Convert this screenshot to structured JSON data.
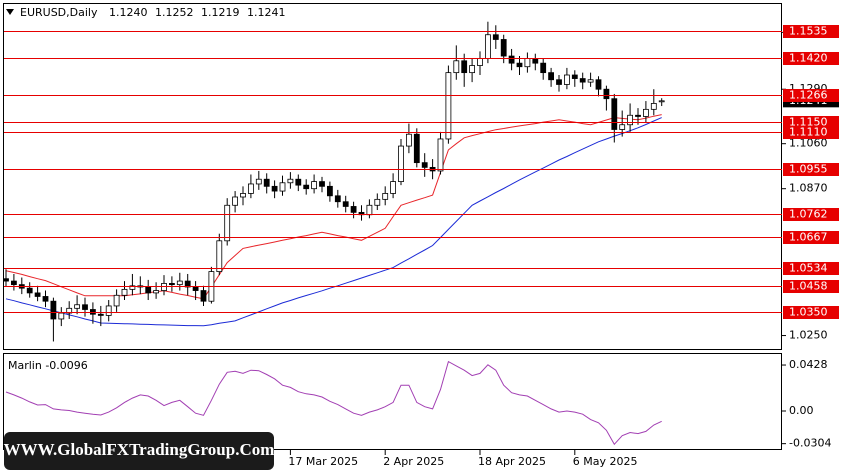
{
  "header": {
    "title": "EURUSD,Daily",
    "ohlc": [
      "1.1240",
      "1.1252",
      "1.1219",
      "1.1241"
    ]
  },
  "watermark": "WWW.GlobalFXTradingGroup.Com",
  "chart_data": [
    {
      "type": "candlestick",
      "categories": [
        null,
        null,
        null,
        null,
        null,
        null,
        null,
        null,
        null,
        null,
        null,
        null,
        null,
        null,
        null,
        null,
        null,
        null,
        null,
        null,
        null,
        null,
        null,
        null,
        null,
        null,
        null,
        null,
        null,
        null,
        null,
        null,
        null,
        null,
        null,
        null,
        "17 Mar 2025",
        null,
        null,
        null,
        null,
        null,
        null,
        null,
        null,
        null,
        null,
        null,
        "2 Apr 2025",
        null,
        null,
        null,
        null,
        null,
        null,
        null,
        null,
        null,
        null,
        null,
        "18 Apr 2025",
        null,
        null,
        null,
        null,
        null,
        null,
        null,
        null,
        null,
        null,
        null,
        "6 May 2025",
        null,
        null,
        null,
        null,
        null,
        null,
        null,
        null,
        null,
        null,
        null
      ],
      "open": [
        1.049,
        1.048,
        1.0465,
        1.045,
        1.043,
        1.0415,
        1.0395,
        1.032,
        1.0345,
        1.0365,
        1.038,
        1.036,
        1.034,
        1.0335,
        1.0375,
        1.042,
        1.0445,
        1.046,
        1.0455,
        1.043,
        1.044,
        1.047,
        1.0465,
        1.048,
        1.0455,
        1.044,
        1.0395,
        1.052,
        1.065,
        1.08,
        1.0835,
        1.085,
        1.089,
        1.091,
        1.088,
        1.086,
        1.0895,
        1.091,
        1.0885,
        1.087,
        1.09,
        1.088,
        1.084,
        1.0815,
        1.0795,
        1.077,
        1.076,
        1.08,
        1.0825,
        1.085,
        1.09,
        1.105,
        1.11,
        1.098,
        1.096,
        1.0945,
        1.108,
        1.136,
        1.141,
        1.136,
        1.139,
        1.142,
        1.152,
        1.15,
        1.143,
        1.14,
        1.1385,
        1.142,
        1.14,
        1.136,
        1.133,
        1.131,
        1.135,
        1.1335,
        1.132,
        1.133,
        1.129,
        1.125,
        1.112,
        1.114,
        1.118,
        1.1175,
        1.1205,
        1.124
      ],
      "high": [
        1.053,
        1.051,
        1.0495,
        1.0475,
        1.046,
        1.044,
        1.041,
        1.037,
        1.0395,
        1.042,
        1.041,
        1.039,
        1.0375,
        1.04,
        1.0445,
        1.048,
        1.051,
        1.05,
        1.0485,
        1.0475,
        1.0505,
        1.05,
        1.0515,
        1.051,
        1.048,
        1.046,
        1.054,
        1.068,
        1.083,
        1.086,
        1.088,
        1.093,
        1.0945,
        1.0935,
        1.0905,
        1.0925,
        1.094,
        1.093,
        1.091,
        1.093,
        1.092,
        1.09,
        1.0865,
        1.084,
        1.0815,
        1.08,
        1.0825,
        1.085,
        1.088,
        1.0935,
        1.108,
        1.1145,
        1.1125,
        1.102,
        1.0995,
        1.111,
        1.139,
        1.1475,
        1.144,
        1.142,
        1.145,
        1.1575,
        1.156,
        1.152,
        1.146,
        1.143,
        1.1445,
        1.144,
        1.142,
        1.138,
        1.135,
        1.138,
        1.137,
        1.136,
        1.136,
        1.1345,
        1.1305,
        1.127,
        1.12,
        1.123,
        1.121,
        1.124,
        1.129,
        1.1252
      ],
      "low": [
        1.0455,
        1.044,
        1.0425,
        1.041,
        1.0395,
        1.037,
        1.0225,
        1.029,
        1.032,
        1.034,
        1.033,
        1.03,
        1.029,
        1.031,
        1.035,
        1.04,
        1.042,
        1.0425,
        1.04,
        1.0405,
        1.042,
        1.0435,
        1.044,
        1.042,
        1.04,
        1.0375,
        1.0385,
        1.0505,
        1.063,
        1.077,
        1.08,
        1.083,
        1.0865,
        1.085,
        1.083,
        1.084,
        1.087,
        1.086,
        1.0845,
        1.085,
        1.0855,
        1.0815,
        1.079,
        1.077,
        1.0745,
        1.0735,
        1.0745,
        1.078,
        1.08,
        1.083,
        1.0885,
        1.102,
        1.096,
        1.092,
        1.091,
        1.093,
        1.106,
        1.133,
        1.13,
        1.132,
        1.135,
        1.14,
        1.146,
        1.14,
        1.137,
        1.135,
        1.136,
        1.137,
        1.133,
        1.13,
        1.128,
        1.129,
        1.13,
        1.129,
        1.13,
        1.126,
        1.12,
        1.1065,
        1.109,
        1.111,
        1.114,
        1.115,
        1.118,
        1.1219
      ],
      "close": [
        1.048,
        1.0465,
        1.045,
        1.043,
        1.0415,
        1.0395,
        1.032,
        1.0345,
        1.0365,
        1.038,
        1.036,
        1.034,
        1.0335,
        1.0375,
        1.042,
        1.0445,
        1.046,
        1.0455,
        1.043,
        1.044,
        1.047,
        1.0465,
        1.048,
        1.0455,
        1.044,
        1.0395,
        1.052,
        1.065,
        1.08,
        1.0835,
        1.085,
        1.089,
        1.091,
        1.088,
        1.086,
        1.0895,
        1.091,
        1.0885,
        1.087,
        1.09,
        1.088,
        1.084,
        1.0815,
        1.0795,
        1.077,
        1.076,
        1.08,
        1.0825,
        1.085,
        1.09,
        1.105,
        1.11,
        1.098,
        1.096,
        1.0945,
        1.108,
        1.136,
        1.141,
        1.136,
        1.139,
        1.142,
        1.152,
        1.15,
        1.143,
        1.14,
        1.1385,
        1.142,
        1.14,
        1.136,
        1.133,
        1.131,
        1.135,
        1.1335,
        1.132,
        1.133,
        1.129,
        1.125,
        1.112,
        1.114,
        1.118,
        1.1175,
        1.1205,
        1.123,
        1.1241
      ],
      "up_color": "#ffffff",
      "down_color": "#000000",
      "overlays": [
        {
          "color": "#e8262b",
          "values": [
            1.0524,
            1.0516,
            1.0508,
            1.0499,
            1.049,
            1.0482,
            1.0469,
            1.0456,
            1.0443,
            1.043,
            1.0418,
            1.0418,
            1.0418,
            1.0418,
            1.0418,
            1.0418,
            1.0422,
            1.0426,
            1.0431,
            1.0435,
            1.0439,
            1.0432,
            1.0425,
            1.0419,
            1.0412,
            1.0405,
            1.0456,
            1.0507,
            1.0558,
            1.0588,
            1.0618,
            1.0625,
            1.0632,
            1.0638,
            1.0645,
            1.0652,
            1.0659,
            1.0666,
            1.0672,
            1.0679,
            1.0686,
            1.0679,
            1.0672,
            1.0666,
            1.0659,
            1.0652,
            1.0669,
            1.0686,
            1.0703,
            1.0752,
            1.08,
            1.0811,
            1.0822,
            1.0832,
            1.0843,
            1.0939,
            1.1034,
            1.106,
            1.1085,
            1.1094,
            1.1102,
            1.1111,
            1.1119,
            1.1124,
            1.113,
            1.1135,
            1.114,
            1.1145,
            1.1151,
            1.1156,
            1.1161,
            1.1156,
            1.1151,
            1.1145,
            1.114,
            1.115,
            1.116,
            1.117,
            1.1167,
            1.1164,
            1.1161,
            1.1168,
            1.1176,
            1.1183
          ]
        },
        {
          "color": "#1c2bd6",
          "values": [
            1.0405,
            1.0397,
            1.0388,
            1.038,
            1.0371,
            1.0363,
            1.0354,
            1.0346,
            1.0337,
            1.0329,
            1.032,
            1.0312,
            1.0303,
            1.0302,
            1.0301,
            1.03,
            1.0299,
            1.0298,
            1.0297,
            1.0296,
            1.0295,
            1.0294,
            1.0293,
            1.0292,
            1.0292,
            1.0291,
            1.0296,
            1.0302,
            1.0307,
            1.0312,
            1.0325,
            1.0337,
            1.035,
            1.0363,
            1.0375,
            1.0388,
            1.0398,
            1.0409,
            1.0419,
            1.0429,
            1.0439,
            1.045,
            1.046,
            1.0471,
            1.0482,
            1.0493,
            1.0504,
            1.0515,
            1.0526,
            1.0537,
            1.0556,
            1.0574,
            1.0593,
            1.0611,
            1.063,
            1.0664,
            1.0698,
            1.0732,
            1.0766,
            1.08,
            1.0818,
            1.0836,
            1.0854,
            1.0871,
            1.0889,
            1.0907,
            1.0924,
            1.0941,
            1.0957,
            1.0974,
            1.0991,
            1.1006,
            1.1022,
            1.1037,
            1.1053,
            1.1068,
            1.108,
            1.1092,
            1.1103,
            1.1115,
            1.1127,
            1.1141,
            1.1156,
            1.117
          ]
        }
      ],
      "ylim": [
        1.0189,
        1.1654
      ],
      "yticks": [
        {
          "value": 1.153,
          "label": "1.1530"
        },
        {
          "value": 1.129,
          "label": "1.1290"
        },
        {
          "value": 1.106,
          "label": "1.1060"
        },
        {
          "value": 1.087,
          "label": "1.0870"
        },
        {
          "value": 1.025,
          "label": "1.0250"
        }
      ],
      "price_label": {
        "value": 1.1241,
        "label": "1.1241"
      },
      "level_color": "#e60000",
      "levels": [
        {
          "value": 1.1535,
          "label": "1.1535"
        },
        {
          "value": 1.142,
          "label": "1.1420"
        },
        {
          "value": 1.1266,
          "label": "1.1266"
        },
        {
          "value": 1.115,
          "label": "1.1150"
        },
        {
          "value": 1.111,
          "label": "1.1110"
        },
        {
          "value": 1.0955,
          "label": "1.0955"
        },
        {
          "value": 1.0762,
          "label": "1.0762"
        },
        {
          "value": 1.0667,
          "label": "1.0667"
        },
        {
          "value": 1.0534,
          "label": "1.0534"
        },
        {
          "value": 1.0458,
          "label": "1.0458"
        },
        {
          "value": 1.035,
          "label": "1.0350"
        }
      ]
    },
    {
      "type": "line",
      "title": "Marlin -0.0096",
      "color": "#a23fb3",
      "values": [
        0.0177,
        0.015,
        0.012,
        0.0085,
        0.0056,
        0.006,
        0.002,
        0.001,
        0.0005,
        -0.001,
        -0.002,
        -0.003,
        -0.0037,
        -0.001,
        0.003,
        0.008,
        0.012,
        0.015,
        0.014,
        0.01,
        0.005,
        0.008,
        0.01,
        0.004,
        -0.002,
        -0.004,
        0.01,
        0.025,
        0.036,
        0.037,
        0.035,
        0.038,
        0.0375,
        0.034,
        0.03,
        0.024,
        0.022,
        0.018,
        0.016,
        0.015,
        0.013,
        0.009,
        0.006,
        0.002,
        -0.002,
        -0.004,
        -0.001,
        0.001,
        0.004,
        0.008,
        0.024,
        0.024,
        0.008,
        0.004,
        0.002,
        0.02,
        0.046,
        0.042,
        0.038,
        0.033,
        0.035,
        0.043,
        0.038,
        0.024,
        0.017,
        0.015,
        0.014,
        0.01,
        0.006,
        0.002,
        -0.001,
        0.0,
        -0.001,
        -0.003,
        -0.008,
        -0.011,
        -0.018,
        -0.031,
        -0.023,
        -0.02,
        -0.021,
        -0.019,
        -0.013,
        -0.0096
      ],
      "ylim": [
        -0.0363,
        0.054
      ],
      "yticks": [
        0.0428,
        {
          "value": 0,
          "label": "0.00"
        },
        -0.0304
      ]
    }
  ]
}
